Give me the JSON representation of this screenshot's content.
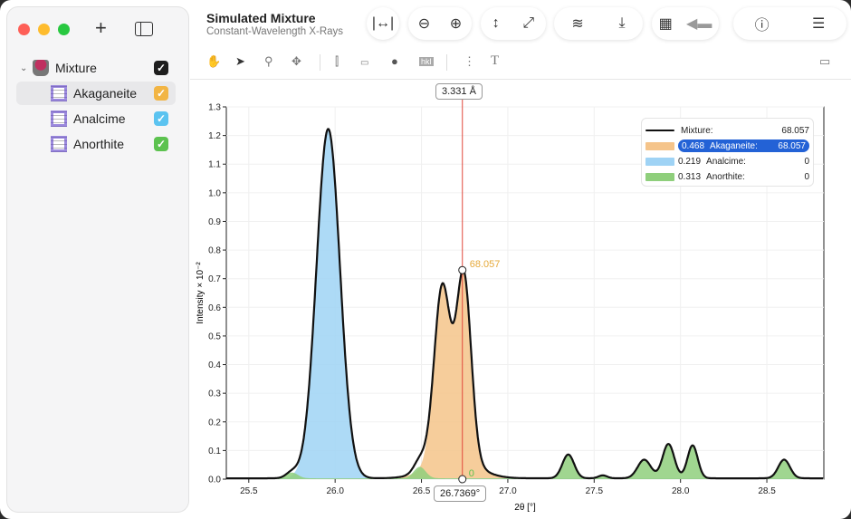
{
  "window": {
    "title": "Simulated Mixture",
    "subtitle": "Constant-Wavelength X-Rays"
  },
  "sidebar": {
    "add_icon": "plus-icon",
    "toggle_icon": "sidebar-icon",
    "items": [
      {
        "label": "Mixture",
        "checked": true,
        "color": "#1e1e1e",
        "icon": "mixture-bucket-icon"
      },
      {
        "label": "Akaganeite",
        "checked": true,
        "color": "#f2b544",
        "icon": "crystal-lattice-icon",
        "selected": true
      },
      {
        "label": "Analcime",
        "checked": true,
        "color": "#5bc3f0",
        "icon": "crystal-lattice-icon"
      },
      {
        "label": "Anorthite",
        "checked": true,
        "color": "#5cc24f",
        "icon": "crystal-lattice-icon"
      }
    ]
  },
  "toolbar": {
    "groups": [
      [
        "fit-width-icon"
      ],
      [
        "zoom-out-icon",
        "zoom-in-icon"
      ],
      [
        "fit-height-icon",
        "fit-all-icon"
      ],
      [
        "peaks-icon",
        "baseline-icon"
      ],
      [
        "film-icon",
        "tag-icon"
      ],
      [
        "info-icon",
        "sliders-icon"
      ]
    ],
    "tools": [
      "hand-icon",
      "pointer-icon",
      "magnify-icon",
      "move-icon",
      "cursor-line-icon",
      "ruler-icon",
      "lasso-icon",
      "hkl-icon",
      "list-icon",
      "text-icon"
    ]
  },
  "cursor": {
    "d_spacing": "3.331 Å",
    "two_theta": "26.7369°",
    "value_label": "68.057",
    "zero_label": "0"
  },
  "legend": [
    {
      "fraction": "",
      "name": "Mixture:",
      "value": "68.057"
    },
    {
      "fraction": "0.468",
      "name": "Akaganeite:",
      "value": "68.057"
    },
    {
      "fraction": "0.219",
      "name": "Analcime:",
      "value": "0"
    },
    {
      "fraction": "0.313",
      "name": "Anorthite:",
      "value": "0"
    }
  ],
  "chart_data": {
    "type": "area",
    "xlabel": "2θ [°]",
    "ylabel": "Intensity × 10⁻²",
    "xlim": [
      25.37,
      28.83
    ],
    "ylim": [
      0,
      1.3
    ],
    "xticks": [
      25.5,
      26.0,
      26.5,
      27.0,
      27.5,
      28.0,
      28.5
    ],
    "yticks": [
      0.0,
      0.1,
      0.2,
      0.3,
      0.4,
      0.5,
      0.6,
      0.7,
      0.8,
      0.9,
      1.0,
      1.1,
      1.2,
      1.3
    ],
    "grid": true,
    "legend_position": "top-right",
    "cursor_x": 26.7369,
    "series": [
      {
        "name": "Akaganeite",
        "color": "#f5c48a",
        "peaks": [
          {
            "position": 26.62,
            "intensity": 0.6,
            "fwhm": 0.11
          },
          {
            "position": 26.745,
            "intensity": 0.64,
            "fwhm": 0.1
          },
          {
            "position": 26.68,
            "intensity": 0.08,
            "fwhm": 0.3
          }
        ]
      },
      {
        "name": "Analcime",
        "color": "#9fd3f5",
        "peaks": [
          {
            "position": 25.96,
            "intensity": 1.22,
            "fwhm": 0.16
          }
        ]
      },
      {
        "name": "Anorthite",
        "color": "#8fcf7c",
        "peaks": [
          {
            "position": 25.75,
            "intensity": 0.02,
            "fwhm": 0.08
          },
          {
            "position": 26.49,
            "intensity": 0.04,
            "fwhm": 0.08
          },
          {
            "position": 27.35,
            "intensity": 0.083,
            "fwhm": 0.08
          },
          {
            "position": 27.55,
            "intensity": 0.01,
            "fwhm": 0.06
          },
          {
            "position": 27.79,
            "intensity": 0.065,
            "fwhm": 0.09
          },
          {
            "position": 27.93,
            "intensity": 0.12,
            "fwhm": 0.08
          },
          {
            "position": 28.07,
            "intensity": 0.115,
            "fwhm": 0.07
          },
          {
            "position": 28.6,
            "intensity": 0.065,
            "fwhm": 0.08
          }
        ]
      }
    ],
    "mixture": {
      "name": "Mixture",
      "color": "#111111"
    }
  }
}
